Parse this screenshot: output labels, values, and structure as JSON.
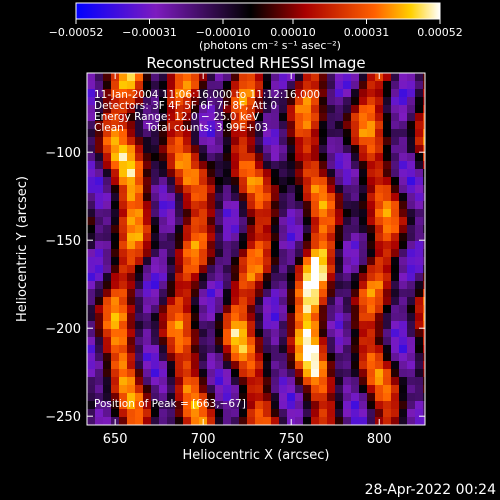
{
  "chart_data": {
    "type": "heatmap",
    "title": "Reconstructed RHESSI Image",
    "xlabel": "Heliocentric X (arcsec)",
    "ylabel": "Heliocentric Y (arcsec)",
    "xlim": [
      634,
      826
    ],
    "ylim": [
      -255,
      -55
    ],
    "x_ticks": [
      650,
      700,
      750,
      800
    ],
    "y_ticks": [
      -100,
      -150,
      -200,
      -250
    ],
    "x_tick_labels": [
      "650",
      "700",
      "750",
      "800"
    ],
    "y_tick_labels": [
      "−100",
      "−150",
      "−200",
      "−250"
    ],
    "colorbar": {
      "min": -0.00052,
      "max": 0.00052,
      "ticks": [
        -0.00052,
        -0.00031,
        -0.0001,
        0.0001,
        0.00031,
        0.00052
      ],
      "tick_labels": [
        "−0.00052",
        "−0.00031",
        "−0.00010",
        "0.00010",
        "0.00031",
        "0.00052"
      ],
      "unit_label": "(photons cm⁻² s⁻¹ asec⁻²)"
    },
    "annotations": {
      "time_range": "11-Jan-2004 11:06:16.000 to 11:12:16.000",
      "detectors": "Detectors: 3F 4F 5F 6F 7F 8F, Att 0",
      "energy_range": "Energy Range: 12.0 − 25.0 keV",
      "algorithm": "Clean",
      "total_counts": "Total counts: 3.99E+03",
      "peak_position": "Position of Peak = [663,−67]"
    },
    "peak": [
      663,
      -67
    ],
    "grid": false
  },
  "footer": {
    "timestamp": "28-Apr-2022 00:24"
  },
  "colors": {
    "background": "#000000",
    "text": "#ffffff",
    "colormap_stops": [
      "#0000ff",
      "#7d1bbf",
      "#000000",
      "#a90000",
      "#ff6000",
      "#ffffff"
    ]
  }
}
